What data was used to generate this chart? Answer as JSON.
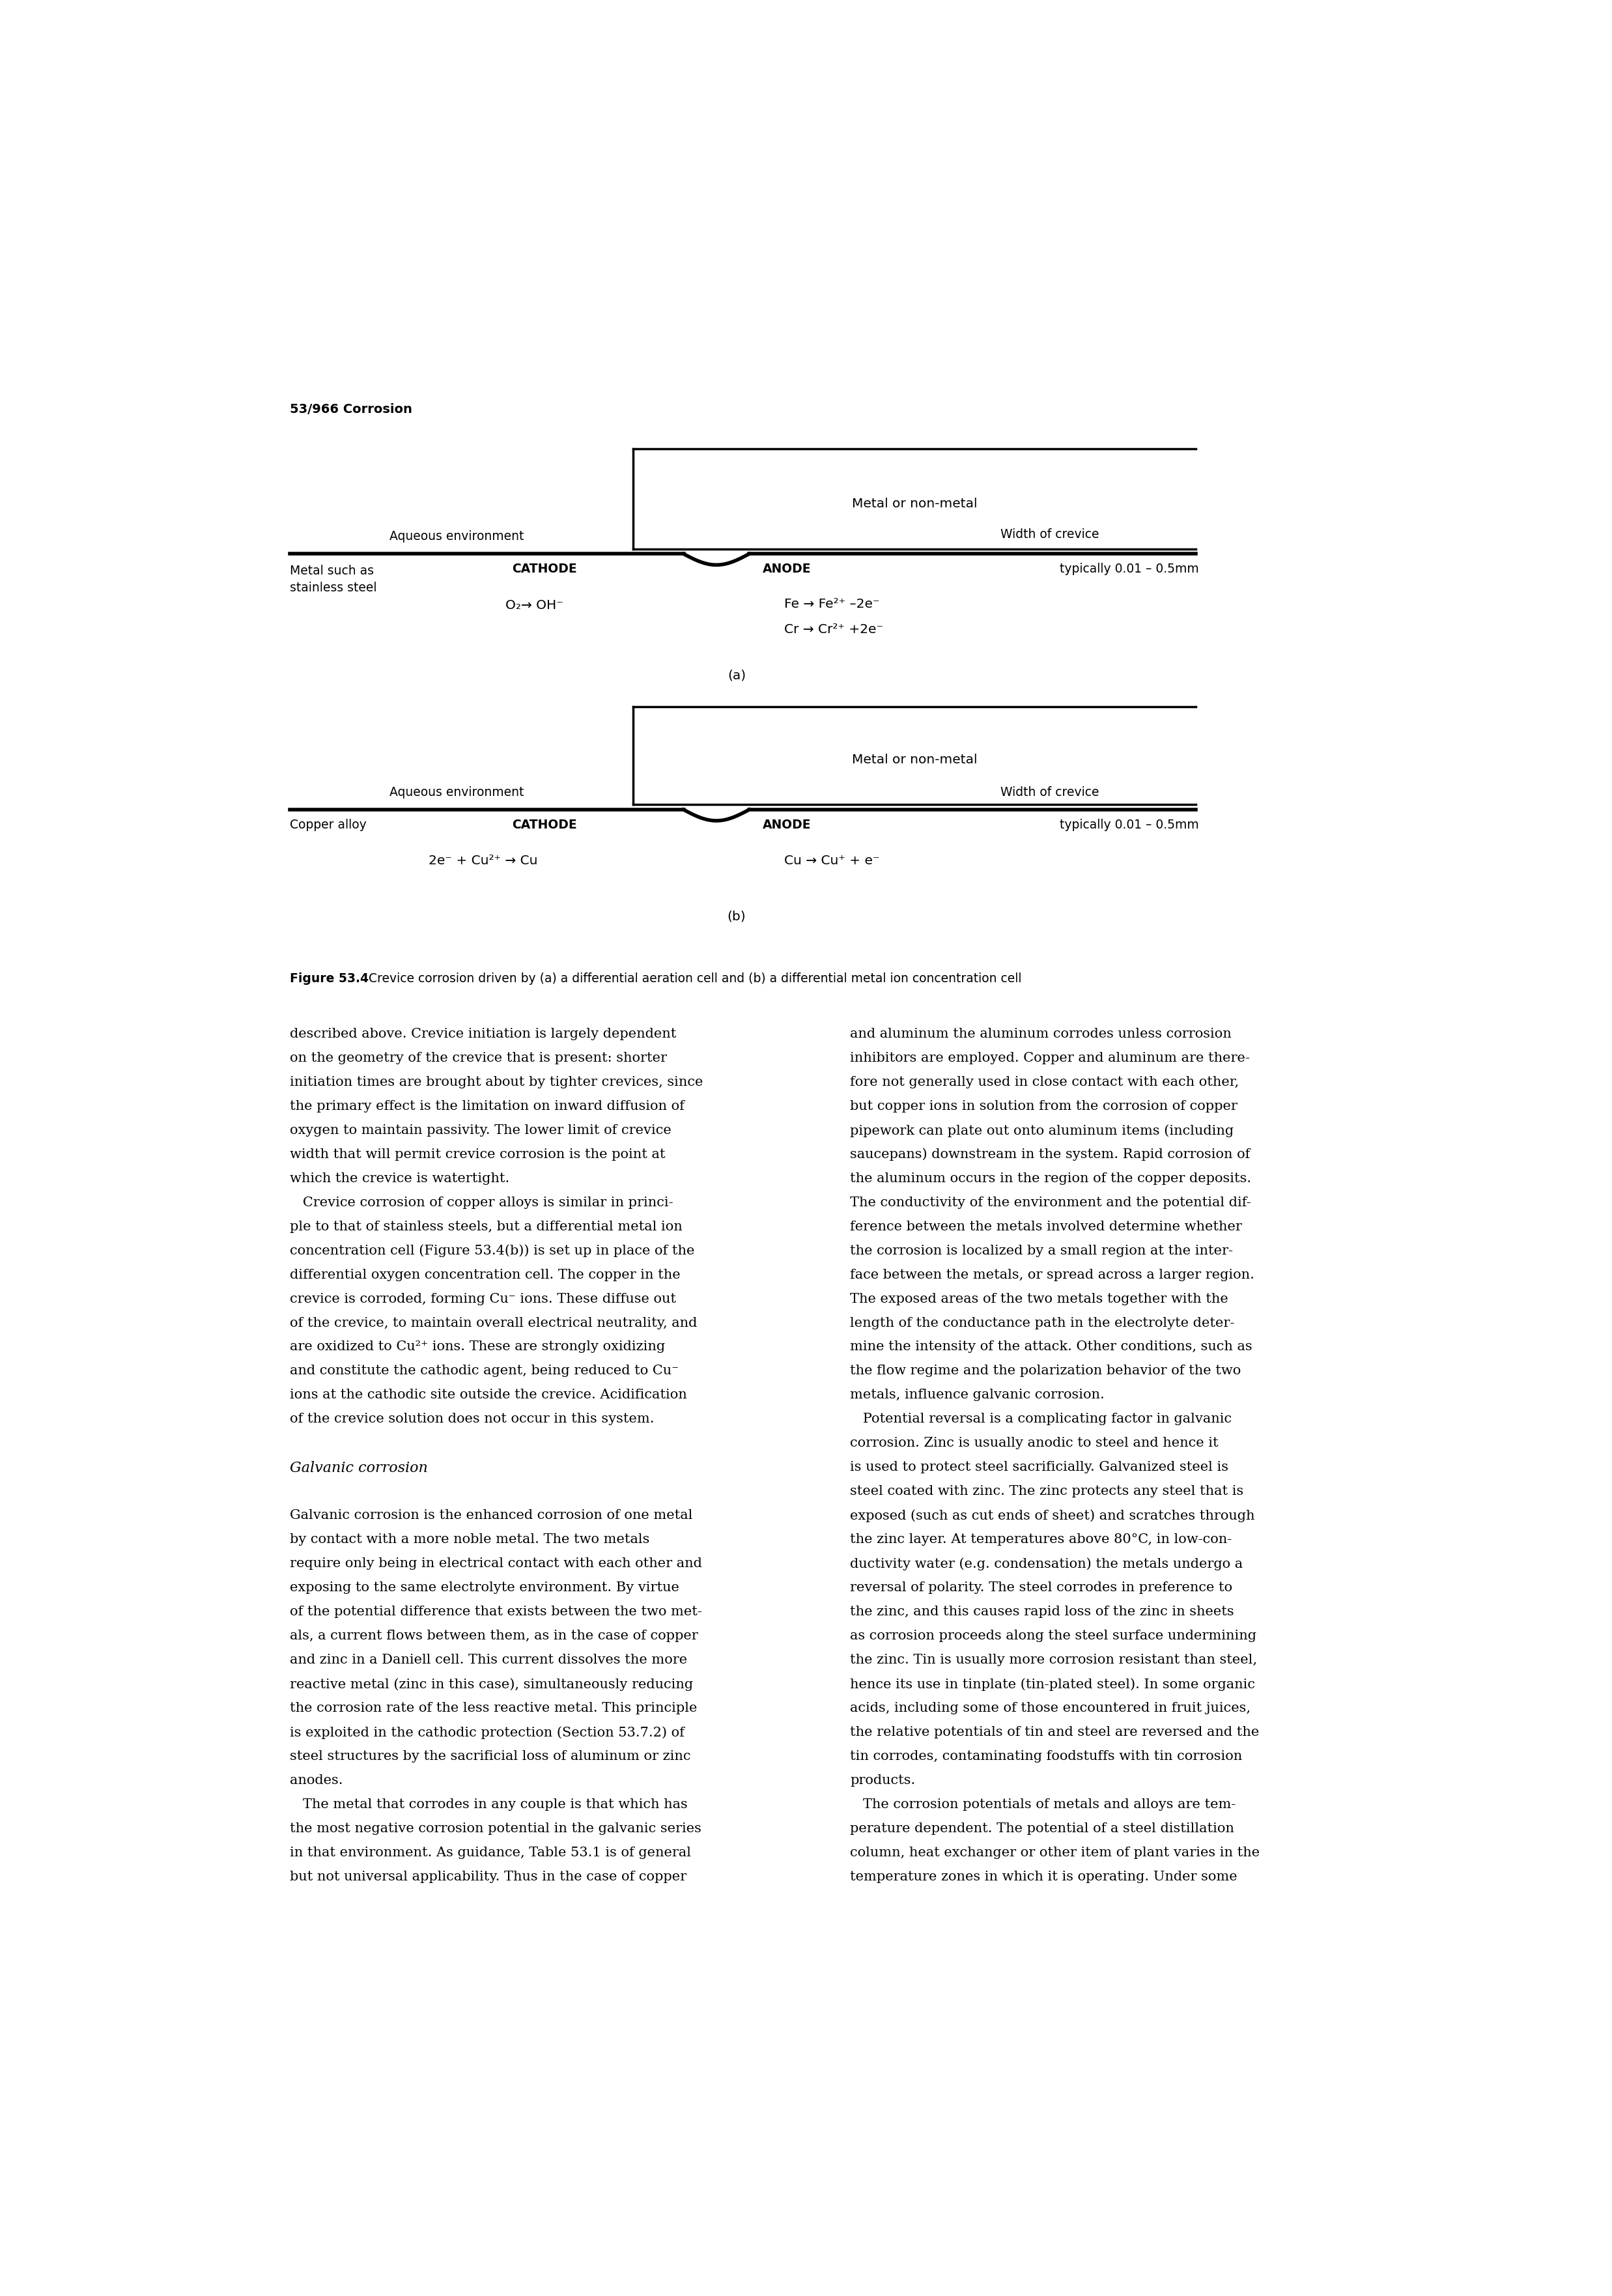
{
  "page_header": "53/966 Corrosion",
  "diagram_a": {
    "label": "(a)",
    "metal_label": "Metal or non-metal",
    "aqueous_env": "Aqueous environment",
    "width_crevice": "Width of crevice",
    "metal_type_line1": "Metal such as",
    "metal_type_line2": "stainless steel",
    "cathode": "CATHODE",
    "anode": "ANODE",
    "width_val": "typically 0.01 – 0.5mm",
    "cathode_reaction": "O₂→ OH⁻",
    "anode_reaction1": "Fe → Fe²⁺ –2e⁻",
    "anode_reaction2": "Cr → Cr²⁺ +2e⁻"
  },
  "diagram_b": {
    "label": "(b)",
    "metal_label": "Metal or non-metal",
    "aqueous_env": "Aqueous environment",
    "width_crevice": "Width of crevice",
    "metal_type": "Copper alloy",
    "cathode": "CATHODE",
    "anode": "ANODE",
    "width_val": "typically 0.01 – 0.5mm",
    "cathode_reaction": "2e⁻ + Cu²⁺ → Cu",
    "anode_reaction1": "Cu → Cu⁺ + e⁻"
  },
  "figure_caption_bold": "Figure 53.4",
  "figure_caption_rest": " Crevice corrosion driven by (a) a differential aeration cell and (b) a differential metal ion concentration cell",
  "body_text_left": [
    "described above. Crevice initiation is largely dependent",
    "on the geometry of the crevice that is present: shorter",
    "initiation times are brought about by tighter crevices, since",
    "the primary effect is the limitation on inward diffusion of",
    "oxygen to maintain passivity. The lower limit of crevice",
    "width that will permit crevice corrosion is the point at",
    "which the crevice is watertight.",
    "   Crevice corrosion of copper alloys is similar in princi-",
    "ple to that of stainless steels, but a differential metal ion",
    "concentration cell (Figure 53.4(b)) is set up in place of the",
    "differential oxygen concentration cell. The copper in the",
    "crevice is corroded, forming Cu⁻ ions. These diffuse out",
    "of the crevice, to maintain overall electrical neutrality, and",
    "are oxidized to Cu²⁺ ions. These are strongly oxidizing",
    "and constitute the cathodic agent, being reduced to Cu⁻",
    "ions at the cathodic site outside the crevice. Acidification",
    "of the crevice solution does not occur in this system.",
    "",
    "Galvanic corrosion",
    "",
    "Galvanic corrosion is the enhanced corrosion of one metal",
    "by contact with a more noble metal. The two metals",
    "require only being in electrical contact with each other and",
    "exposing to the same electrolyte environment. By virtue",
    "of the potential difference that exists between the two met-",
    "als, a current flows between them, as in the case of copper",
    "and zinc in a Daniell cell. This current dissolves the more",
    "reactive metal (zinc in this case), simultaneously reducing",
    "the corrosion rate of the less reactive metal. This principle",
    "is exploited in the cathodic protection (Section 53.7.2) of",
    "steel structures by the sacrificial loss of aluminum or zinc",
    "anodes.",
    "   The metal that corrodes in any couple is that which has",
    "the most negative corrosion potential in the galvanic series",
    "in that environment. As guidance, Table 53.1 is of general",
    "but not universal applicability. Thus in the case of copper"
  ],
  "body_text_right": [
    "and aluminum the aluminum corrodes unless corrosion",
    "inhibitors are employed. Copper and aluminum are there-",
    "fore not generally used in close contact with each other,",
    "but copper ions in solution from the corrosion of copper",
    "pipework can plate out onto aluminum items (including",
    "saucepans) downstream in the system. Rapid corrosion of",
    "the aluminum occurs in the region of the copper deposits.",
    "The conductivity of the environment and the potential dif-",
    "ference between the metals involved determine whether",
    "the corrosion is localized by a small region at the inter-",
    "face between the metals, or spread across a larger region.",
    "The exposed areas of the two metals together with the",
    "length of the conductance path in the electrolyte deter-",
    "mine the intensity of the attack. Other conditions, such as",
    "the flow regime and the polarization behavior of the two",
    "metals, influence galvanic corrosion.",
    "   Potential reversal is a complicating factor in galvanic",
    "corrosion. Zinc is usually anodic to steel and hence it",
    "is used to protect steel sacrificially. Galvanized steel is",
    "steel coated with zinc. The zinc protects any steel that is",
    "exposed (such as cut ends of sheet) and scratches through",
    "the zinc layer. At temperatures above 80°C, in low-con-",
    "ductivity water (e.g. condensation) the metals undergo a",
    "reversal of polarity. The steel corrodes in preference to",
    "the zinc, and this causes rapid loss of the zinc in sheets",
    "as corrosion proceeds along the steel surface undermining",
    "the zinc. Tin is usually more corrosion resistant than steel,",
    "hence its use in tinplate (tin-plated steel). In some organic",
    "acids, including some of those encountered in fruit juices,",
    "the relative potentials of tin and steel are reversed and the",
    "tin corrodes, contaminating foodstuffs with tin corrosion",
    "products.",
    "   The corrosion potentials of metals and alloys are tem-",
    "perature dependent. The potential of a steel distillation",
    "column, heat exchanger or other item of plant varies in the",
    "temperature zones in which it is operating. Under some"
  ]
}
